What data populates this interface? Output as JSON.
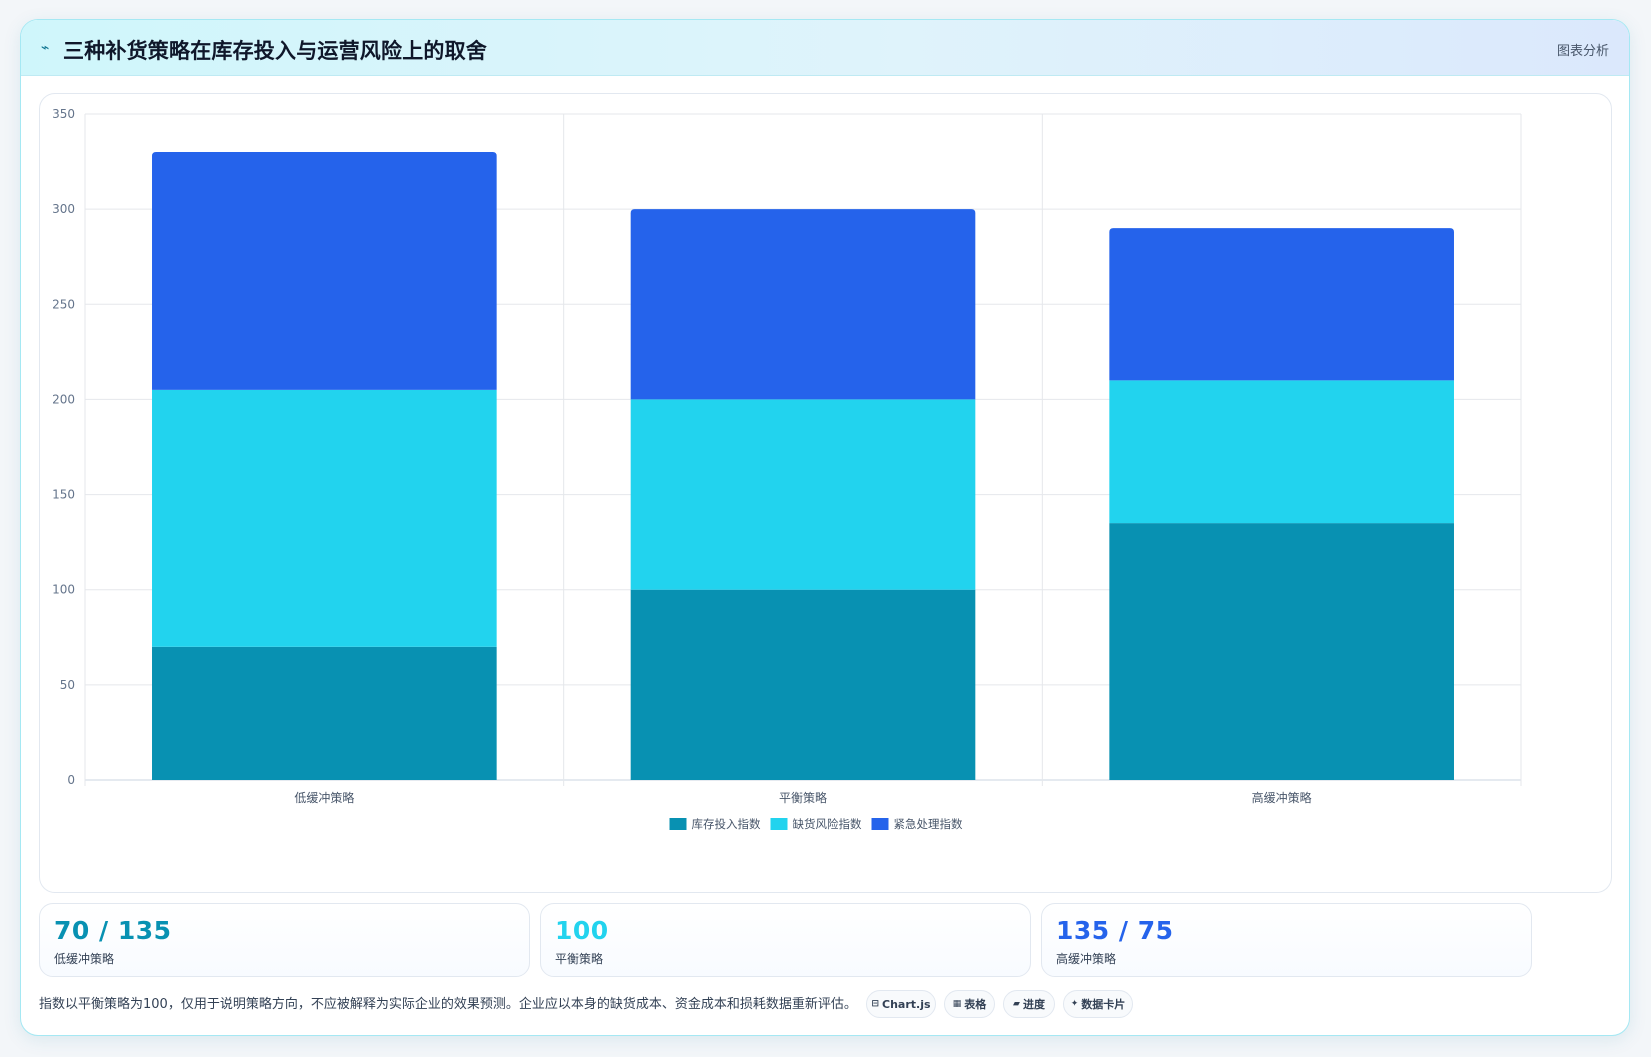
{
  "header": {
    "icon": "chart-line-icon",
    "title": "三种补货策略在库存投入与运营风险上的取舍",
    "tag": "图表分析"
  },
  "chart_data": {
    "type": "bar",
    "stacked": true,
    "categories": [
      "低缓冲策略",
      "平衡策略",
      "高缓冲策略"
    ],
    "series": [
      {
        "name": "库存投入指数",
        "values": [
          70,
          100,
          135
        ],
        "color": "#0891b2"
      },
      {
        "name": "缺货风险指数",
        "values": [
          135,
          100,
          75
        ],
        "color": "#22d3ee"
      },
      {
        "name": "紧急处理指数",
        "values": [
          125,
          100,
          80
        ],
        "color": "#2563eb"
      }
    ],
    "ylim": [
      0,
      350
    ],
    "yticks": [
      0,
      50,
      100,
      150,
      200,
      250,
      300,
      350
    ],
    "grid": true,
    "legend": "bottom"
  },
  "stats": [
    {
      "value": "70 / 135",
      "label": "低缓冲策略",
      "color": "#0891b2"
    },
    {
      "value": "100",
      "label": "平衡策略",
      "color": "#22d3ee"
    },
    {
      "value": "135 / 75",
      "label": "高缓冲策略",
      "color": "#2563eb"
    }
  ],
  "footnote": "指数以平衡策略为100，仅用于说明策略方向，不应被解释为实际企业的效果预测。企业应以本身的缺货成本、资金成本和损耗数据重新评估。",
  "chips": [
    {
      "icon": "chart-icon",
      "glyph": "⊟",
      "label": "Chart.js"
    },
    {
      "icon": "table-icon",
      "glyph": "▦",
      "label": "表格"
    },
    {
      "icon": "progress-icon",
      "glyph": "▰",
      "label": "进度"
    },
    {
      "icon": "sparkle-icon",
      "glyph": "✦",
      "label": "数据卡片"
    }
  ]
}
